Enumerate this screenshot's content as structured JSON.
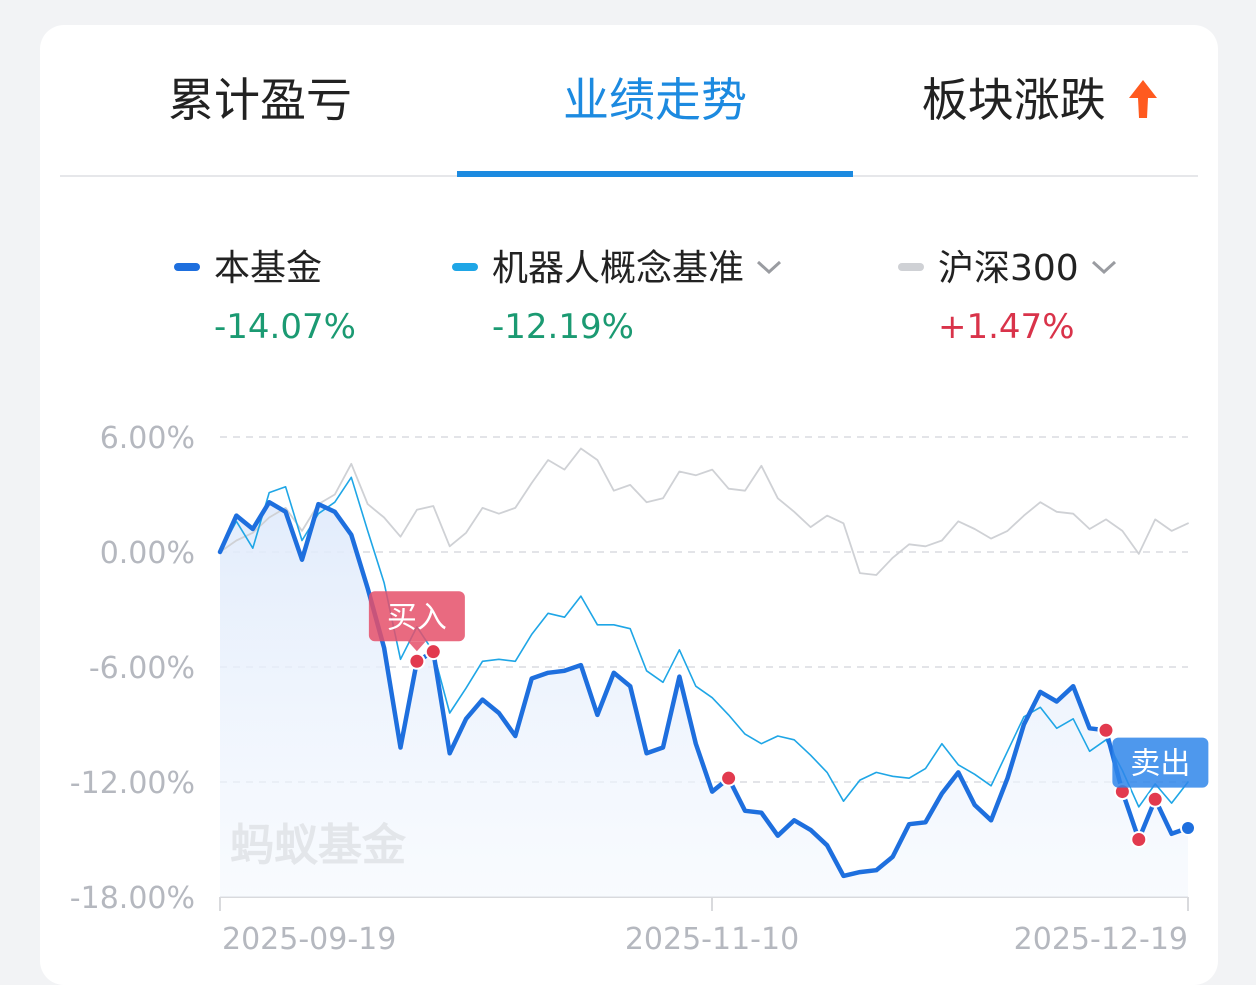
{
  "tabs": [
    {
      "label": "累计盈亏",
      "active": false
    },
    {
      "label": "业绩走势",
      "active": true
    },
    {
      "label": "板块涨跌",
      "active": false,
      "icon": "hot-arrow-up-icon"
    }
  ],
  "legend": [
    {
      "name": "本基金",
      "value": "-14.07%",
      "color": "#1e6fde",
      "trend": "neg",
      "has_dropdown": false
    },
    {
      "name": "机器人概念基准",
      "value": "-12.19%",
      "color": "#1fa6e6",
      "trend": "neg",
      "has_dropdown": true
    },
    {
      "name": "沪深300",
      "value": "+1.47%",
      "color": "#cfd1d5",
      "trend": "pos",
      "has_dropdown": true
    }
  ],
  "watermark": "蚂蚁基金",
  "markers": {
    "buy_label": "买入",
    "sell_label": "卖出"
  },
  "chart_data": {
    "type": "line",
    "y_tick_labels": [
      "6.00%",
      "0.00%",
      "-6.00%",
      "-12.00%",
      "-18.00%"
    ],
    "y_ticks": [
      6,
      0,
      -6,
      -12,
      -18
    ],
    "ylim": [
      -18,
      6
    ],
    "x_tick_labels": [
      "2025-09-19",
      "2025-11-10",
      "2025-12-19"
    ],
    "grid": "dashed-horizontal",
    "series": [
      {
        "name": "本基金",
        "color": "#1e6fde",
        "values": [
          0.0,
          1.9,
          1.2,
          2.6,
          2.1,
          -0.4,
          2.5,
          2.1,
          0.9,
          -1.9,
          -5.0,
          -10.2,
          -5.7,
          -5.2,
          -10.5,
          -8.7,
          -7.7,
          -8.4,
          -9.6,
          -6.6,
          -6.3,
          -6.2,
          -5.9,
          -8.5,
          -6.3,
          -7.0,
          -10.5,
          -10.2,
          -6.5,
          -10.0,
          -12.5,
          -11.8,
          -13.5,
          -13.6,
          -14.8,
          -14.0,
          -14.5,
          -15.3,
          -16.9,
          -16.7,
          -16.6,
          -15.9,
          -14.2,
          -14.1,
          -12.6,
          -11.5,
          -13.2,
          -14.0,
          -11.8,
          -9.0,
          -7.3,
          -7.8,
          -7.0,
          -9.2,
          -9.3,
          -12.5,
          -15.0,
          -12.9,
          -14.7,
          -14.4
        ]
      },
      {
        "name": "机器人概念基准",
        "color": "#1fa6e6",
        "values": [
          0.0,
          1.6,
          0.2,
          3.1,
          3.4,
          0.6,
          2.0,
          2.6,
          3.9,
          1.1,
          -1.6,
          -5.6,
          -3.9,
          -5.2,
          -8.4,
          -7.1,
          -5.7,
          -5.6,
          -5.7,
          -4.3,
          -3.2,
          -3.4,
          -2.3,
          -3.8,
          -3.8,
          -4.0,
          -6.2,
          -6.8,
          -5.1,
          -7.0,
          -7.6,
          -8.5,
          -9.5,
          -10.0,
          -9.6,
          -9.8,
          -10.6,
          -11.5,
          -13.0,
          -11.9,
          -11.5,
          -11.7,
          -11.8,
          -11.3,
          -10.0,
          -11.1,
          -11.6,
          -12.2,
          -10.4,
          -8.6,
          -8.1,
          -9.2,
          -8.7,
          -10.4,
          -9.8,
          -11.4,
          -13.3,
          -12.1,
          -13.1,
          -12.0
        ]
      },
      {
        "name": "沪深300",
        "color": "#cfd1d5",
        "values": [
          0.0,
          0.6,
          1.0,
          1.8,
          2.3,
          1.1,
          2.5,
          3.0,
          4.6,
          2.5,
          1.8,
          0.8,
          2.2,
          2.4,
          0.3,
          1.0,
          2.3,
          2.0,
          2.3,
          3.6,
          4.8,
          4.3,
          5.4,
          4.8,
          3.2,
          3.5,
          2.6,
          2.8,
          4.2,
          4.0,
          4.3,
          3.3,
          3.2,
          4.5,
          2.8,
          2.1,
          1.3,
          1.9,
          1.5,
          -1.1,
          -1.2,
          -0.3,
          0.4,
          0.3,
          0.6,
          1.6,
          1.2,
          0.7,
          1.1,
          1.9,
          2.6,
          2.1,
          2.0,
          1.2,
          1.7,
          1.1,
          -0.1,
          1.7,
          1.1,
          1.5
        ]
      }
    ],
    "trade_points": [
      {
        "type": "buy",
        "index": 12
      },
      {
        "type": "point",
        "index": 13
      },
      {
        "type": "point",
        "index": 31
      },
      {
        "type": "point",
        "index": 54
      },
      {
        "type": "sell",
        "index": 55
      },
      {
        "type": "point",
        "index": 56
      },
      {
        "type": "point",
        "index": 57
      }
    ]
  }
}
